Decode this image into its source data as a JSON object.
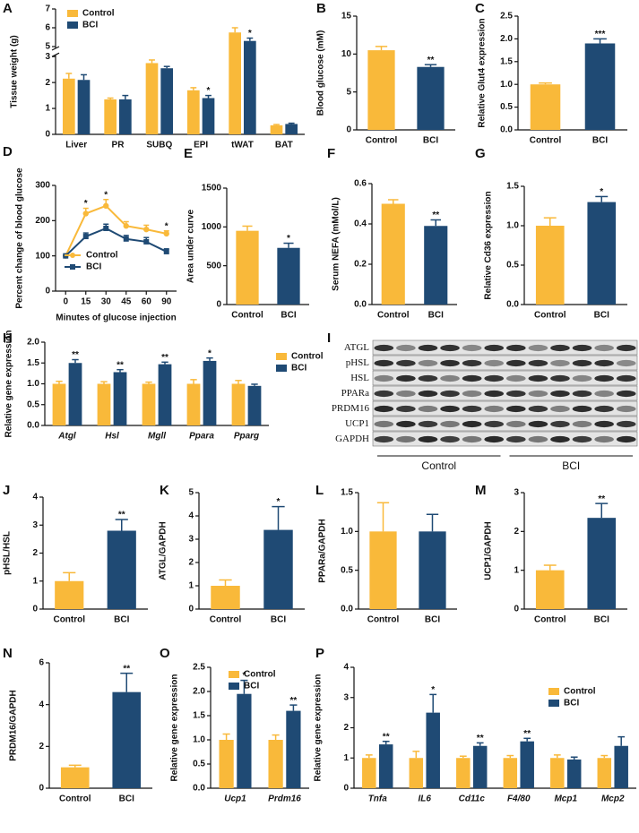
{
  "chart_data": [
    {
      "type": "bar",
      "label": "A",
      "ylabel": "Tissue weight (g)",
      "categories": [
        "Liver",
        "PR",
        "SUBQ",
        "EPI",
        "tWAT",
        "BAT"
      ],
      "series": [
        {
          "name": "Control",
          "color": "#f9b93a",
          "values": [
            2.15,
            1.35,
            2.75,
            1.7,
            5.75,
            0.35
          ],
          "errors": [
            0.2,
            0.05,
            0.12,
            0.1,
            0.25,
            0.03
          ],
          "annotations": [
            null,
            null,
            null,
            null,
            null,
            null
          ]
        },
        {
          "name": "BCI",
          "color": "#1f4a74",
          "values": [
            2.1,
            1.35,
            2.55,
            1.4,
            5.3,
            0.4
          ],
          "errors": [
            0.2,
            0.15,
            0.07,
            0.1,
            0.15,
            0.03
          ],
          "annotations": [
            null,
            null,
            null,
            "*",
            "*",
            null
          ]
        }
      ],
      "ylim": [
        0,
        7
      ],
      "ybreak": [
        3,
        5
      ],
      "yticks": [
        0,
        1,
        2,
        3,
        5,
        6,
        7
      ],
      "legend": "upper left"
    },
    {
      "type": "bar",
      "label": "B",
      "ylabel": "Blood glucose (mM)",
      "categories": [
        "Control",
        "BCI"
      ],
      "values": [
        10.5,
        8.3
      ],
      "errors": [
        0.5,
        0.3
      ],
      "annotations": [
        null,
        "**"
      ],
      "colors": [
        "#f9b93a",
        "#1f4a74"
      ],
      "ylim": [
        0,
        15
      ],
      "yticks": [
        0,
        5,
        10,
        15
      ]
    },
    {
      "type": "bar",
      "label": "C",
      "ylabel": "Relative Glut4 expression",
      "categories": [
        "Control",
        "BCI"
      ],
      "values": [
        1.0,
        1.9
      ],
      "errors": [
        0.03,
        0.1
      ],
      "annotations": [
        null,
        "***"
      ],
      "colors": [
        "#f9b93a",
        "#1f4a74"
      ],
      "ylim": [
        0,
        2.5
      ],
      "yticks": [
        {
          "value": 0,
          "label": "0.0"
        },
        0.5,
        {
          "value": 1,
          "label": "1.0"
        },
        1.5,
        {
          "value": 2,
          "label": "2.0"
        },
        2.5
      ]
    },
    {
      "type": "line",
      "label": "D",
      "ylabel": "Percent change of blood glucose",
      "xlabel": "Minutes of glucose injection",
      "categories": [
        "0",
        "15",
        "30",
        "45",
        "60",
        "90"
      ],
      "series": [
        {
          "name": "Control",
          "color": "#f9b93a",
          "marker": "circle",
          "values": [
            100,
            220,
            242,
            185,
            175,
            163
          ],
          "errors": [
            0,
            15,
            18,
            12,
            12,
            8
          ],
          "annotations": [
            null,
            "*",
            "*",
            null,
            null,
            "*"
          ]
        },
        {
          "name": "BCI",
          "color": "#1f4a74",
          "marker": "square",
          "values": [
            100,
            155,
            178,
            148,
            140,
            112
          ],
          "errors": [
            0,
            10,
            12,
            10,
            12,
            8
          ],
          "annotations": [
            null,
            null,
            null,
            null,
            null,
            null
          ]
        }
      ],
      "ylim": [
        0,
        300
      ],
      "yticks": [
        0,
        100,
        200,
        300
      ],
      "legend": "lower left"
    },
    {
      "type": "bar",
      "label": "E",
      "ylabel": "Area under curve",
      "categories": [
        "Control",
        "BCI"
      ],
      "values": [
        950,
        730
      ],
      "errors": [
        60,
        60
      ],
      "annotations": [
        null,
        "*"
      ],
      "colors": [
        "#f9b93a",
        "#1f4a74"
      ],
      "ylim": [
        0,
        1500
      ],
      "yticks": [
        0,
        500,
        1000,
        1500
      ]
    },
    {
      "type": "bar",
      "label": "F",
      "ylabel": "Serum NEFA (mMol/L)",
      "categories": [
        "Control",
        "BCI"
      ],
      "values": [
        0.5,
        0.39
      ],
      "errors": [
        0.02,
        0.03
      ],
      "annotations": [
        null,
        "**"
      ],
      "colors": [
        "#f9b93a",
        "#1f4a74"
      ],
      "ylim": [
        0,
        0.6
      ],
      "yticks": [
        {
          "value": 0,
          "label": "0.0"
        },
        0.2,
        0.4,
        0.6
      ]
    },
    {
      "type": "bar",
      "label": "G",
      "ylabel": "Relative Cd36 expression",
      "categories": [
        "Control",
        "BCI"
      ],
      "values": [
        1.0,
        1.3
      ],
      "errors": [
        0.1,
        0.07
      ],
      "annotations": [
        null,
        "*"
      ],
      "colors": [
        "#f9b93a",
        "#1f4a74"
      ],
      "ylim": [
        0,
        1.5
      ],
      "yticks": [
        {
          "value": 0,
          "label": "0.0"
        },
        0.5,
        {
          "value": 1,
          "label": "1.0"
        },
        1.5
      ]
    },
    {
      "type": "bar",
      "label": "H",
      "ylabel": "Relative gene expression",
      "italic_categories": true,
      "categories": [
        "Atgl",
        "Hsl",
        "Mgll",
        "Ppara",
        "Pparg"
      ],
      "series": [
        {
          "name": "Control",
          "color": "#f9b93a",
          "values": [
            1.0,
            1.0,
            1.0,
            1.0,
            1.0
          ],
          "errors": [
            0.06,
            0.05,
            0.04,
            0.1,
            0.08
          ],
          "annotations": [
            null,
            null,
            null,
            null,
            null
          ]
        },
        {
          "name": "BCI",
          "color": "#1f4a74",
          "values": [
            1.5,
            1.28,
            1.47,
            1.55,
            0.95
          ],
          "errors": [
            0.08,
            0.06,
            0.05,
            0.07,
            0.04
          ],
          "annotations": [
            "**",
            "**",
            "**",
            "*",
            null
          ]
        }
      ],
      "ylim": [
        0,
        2
      ],
      "yticks": [
        {
          "value": 0,
          "label": "0.0"
        },
        0.5,
        {
          "value": 1,
          "label": "1.0"
        },
        1.5,
        {
          "value": 2,
          "label": "2.0"
        }
      ],
      "legend": "right"
    },
    {
      "type": "bar",
      "label": "J",
      "ylabel": "pHSL/HSL",
      "categories": [
        "Control",
        "BCI"
      ],
      "values": [
        1.0,
        2.8
      ],
      "errors": [
        0.3,
        0.4
      ],
      "annotations": [
        null,
        "**"
      ],
      "colors": [
        "#f9b93a",
        "#1f4a74"
      ],
      "ylim": [
        0,
        4
      ],
      "yticks": [
        0,
        1,
        2,
        3,
        4
      ]
    },
    {
      "type": "bar",
      "label": "K",
      "ylabel": "ATGL/GAPDH",
      "categories": [
        "Control",
        "BCI"
      ],
      "values": [
        1.0,
        3.4
      ],
      "errors": [
        0.25,
        1.0
      ],
      "annotations": [
        null,
        "*"
      ],
      "colors": [
        "#f9b93a",
        "#1f4a74"
      ],
      "ylim": [
        0,
        5
      ],
      "yticks": [
        0,
        1,
        2,
        3,
        4,
        5
      ]
    },
    {
      "type": "bar",
      "label": "L",
      "ylabel": "PPARa/GAPDH",
      "categories": [
        "Control",
        "BCI"
      ],
      "values": [
        1.0,
        1.0
      ],
      "errors": [
        0.37,
        0.22
      ],
      "annotations": [
        null,
        null
      ],
      "colors": [
        "#f9b93a",
        "#1f4a74"
      ],
      "ylim": [
        0,
        1.5
      ],
      "yticks": [
        {
          "value": 0,
          "label": "0.0"
        },
        0.5,
        {
          "value": 1,
          "label": "1.0"
        },
        1.5
      ]
    },
    {
      "type": "bar",
      "label": "M",
      "ylabel": "UCP1/GAPDH",
      "categories": [
        "Control",
        "BCI"
      ],
      "values": [
        1.0,
        2.35
      ],
      "errors": [
        0.13,
        0.37
      ],
      "annotations": [
        null,
        "**"
      ],
      "colors": [
        "#f9b93a",
        "#1f4a74"
      ],
      "ylim": [
        0,
        3
      ],
      "yticks": [
        0,
        1,
        2,
        3
      ]
    },
    {
      "type": "bar",
      "label": "N",
      "ylabel": "PRDM16/GAPDH",
      "categories": [
        "Control",
        "BCI"
      ],
      "values": [
        1.0,
        4.6
      ],
      "errors": [
        0.1,
        0.9
      ],
      "annotations": [
        null,
        "**"
      ],
      "colors": [
        "#f9b93a",
        "#1f4a74"
      ],
      "ylim": [
        0,
        6
      ],
      "yticks": [
        0,
        2,
        4,
        6
      ]
    },
    {
      "type": "bar",
      "label": "O",
      "ylabel": "Relative gene expression",
      "italic_categories": true,
      "categories": [
        "Ucp1",
        "Prdm16"
      ],
      "series": [
        {
          "name": "Control",
          "color": "#f9b93a",
          "values": [
            1.0,
            1.0
          ],
          "errors": [
            0.12,
            0.1
          ],
          "annotations": [
            null,
            null
          ]
        },
        {
          "name": "BCI",
          "color": "#1f4a74",
          "values": [
            1.95,
            1.6
          ],
          "errors": [
            0.28,
            0.12
          ],
          "annotations": [
            "*",
            "**"
          ]
        }
      ],
      "ylim": [
        0,
        2.5
      ],
      "yticks": [
        {
          "value": 0,
          "label": "0.0"
        },
        0.5,
        {
          "value": 1,
          "label": "1.0"
        },
        1.5,
        {
          "value": 2,
          "label": "2.0"
        },
        2.5
      ],
      "legend": "upper left"
    },
    {
      "type": "bar",
      "label": "P",
      "ylabel": "Relative gene expression",
      "italic_categories": true,
      "categories": [
        "Tnfa",
        "IL6",
        "Cd11c",
        "F4/80",
        "Mcp1",
        "Mcp2"
      ],
      "series": [
        {
          "name": "Control",
          "color": "#f9b93a",
          "values": [
            1.0,
            1.0,
            1.0,
            1.0,
            1.0,
            1.0
          ],
          "errors": [
            0.1,
            0.22,
            0.06,
            0.08,
            0.1,
            0.08
          ],
          "annotations": [
            null,
            null,
            null,
            null,
            null,
            null
          ]
        },
        {
          "name": "BCI",
          "color": "#1f4a74",
          "values": [
            1.45,
            2.5,
            1.4,
            1.55,
            0.95,
            1.4
          ],
          "errors": [
            0.1,
            0.6,
            0.1,
            0.1,
            0.08,
            0.3
          ],
          "annotations": [
            "**",
            "*",
            "**",
            "**",
            null,
            null
          ]
        }
      ],
      "ylim": [
        0,
        4
      ],
      "yticks": [
        0,
        1,
        2,
        3,
        4
      ],
      "legend": "upper right"
    }
  ],
  "blot": {
    "label": "I",
    "rows": [
      "ATGL",
      "pHSL",
      "HSL",
      "PPARa",
      "PRDM16",
      "UCP1",
      "GAPDH"
    ],
    "groups": [
      "Control",
      "BCI"
    ]
  }
}
